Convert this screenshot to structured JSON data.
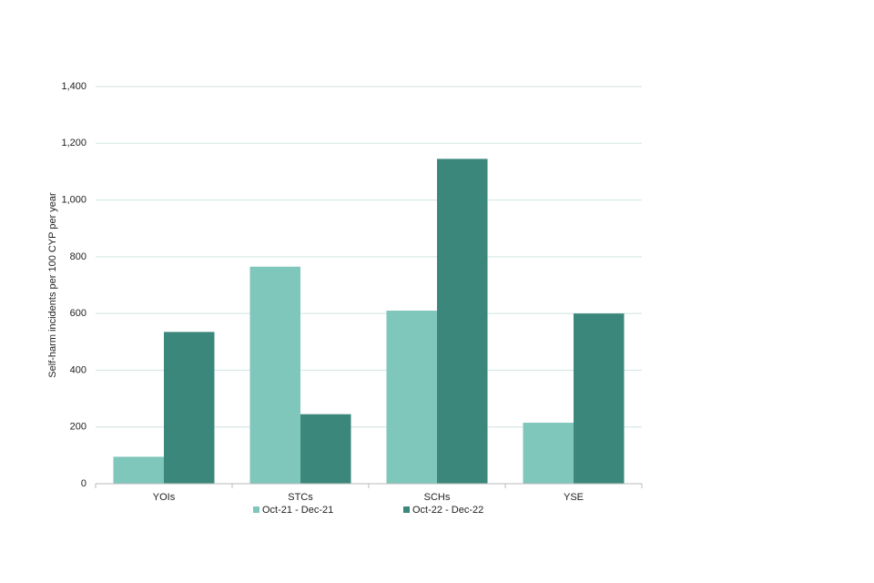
{
  "chart_data": {
    "type": "bar",
    "y_label": "Self-harm incidents per 100 CYP per year",
    "categories": [
      "YOIs",
      "STCs",
      "SCHs",
      "YSE"
    ],
    "series": [
      {
        "name": "Oct-21 - Dec-21",
        "color": "#7fc6bb",
        "values": [
          95,
          765,
          610,
          215
        ]
      },
      {
        "name": "Oct-22 - Dec-22",
        "color": "#3b877c",
        "values": [
          535,
          245,
          1145,
          600
        ]
      }
    ],
    "ylim": [
      0,
      1400
    ],
    "yticks": [
      0,
      200,
      400,
      600,
      800,
      {
        "value": 1000,
        "label": "1,000"
      },
      {
        "value": 1200,
        "label": "1,200"
      },
      {
        "value": 1400,
        "label": "1,400"
      }
    ],
    "grid": true,
    "legend": "bottom"
  }
}
